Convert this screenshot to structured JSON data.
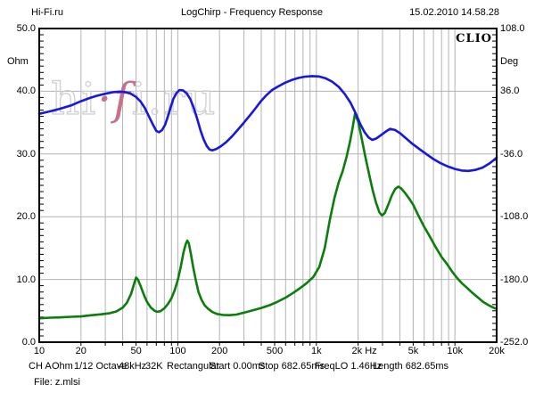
{
  "header": {
    "app_source": "Hi-Fi.ru",
    "title": "LogChirp - Frequency Response",
    "datetime": "15.02.2010 14.58.28"
  },
  "branding": {
    "clio_label": "CLIO",
    "watermark": {
      "pre": "hi",
      "accent": "·f",
      "post": "i.ru"
    }
  },
  "status_bar": {
    "items": [
      "CH A",
      "Ohm",
      "1/12 Octave",
      "48kHz",
      "32K",
      "Rectangular",
      "Start 0.00ms",
      "Stop 682.65ms",
      "FreqLO 1.46Hz",
      "Length 682.65ms"
    ],
    "file_label": "File: z.mlsi"
  },
  "colors": {
    "impedance_curve": "#0a7e0a",
    "phase_curve": "#1717dd",
    "gridline": "#b3b3b3",
    "border": "#000000",
    "watermark_outline": "#cfcfcf",
    "watermark_accent": "#c4738a"
  },
  "chart_data": {
    "type": "line",
    "title": "LogChirp - Frequency Response",
    "grid": true,
    "x_axis": {
      "scale": "log",
      "min": 10,
      "max": 20000,
      "unit": "Hz",
      "tick_values": [
        10,
        20,
        50,
        100,
        200,
        500,
        1000,
        2000,
        5000,
        10000,
        20000
      ],
      "tick_labels": [
        "10",
        "20",
        "50",
        "100",
        "200",
        "500",
        "1k",
        "2k Hz",
        "5k",
        "10k",
        "20k"
      ]
    },
    "y_left": {
      "label": "Ohm",
      "min": 0,
      "max": 50,
      "tick_values": [
        0,
        10,
        20,
        30,
        40,
        50
      ],
      "tick_labels": [
        "0.0",
        "10.0",
        "20.0",
        "30.0",
        "40.0",
        "50.0"
      ]
    },
    "y_right": {
      "label": "Deg",
      "min": -252,
      "max": 108,
      "tick_values": [
        -252,
        -180,
        -108,
        -36,
        36,
        108
      ],
      "tick_labels": [
        "-252.0",
        "-180.0",
        "-108.0",
        "-36.0",
        "36.0",
        "108.0"
      ]
    },
    "series": [
      {
        "name": "impedance-magnitude",
        "axis": "left",
        "unit": "Ohm",
        "color": "#0a7e0a",
        "points": [
          [
            10,
            3.8
          ],
          [
            12,
            3.9
          ],
          [
            14,
            3.95
          ],
          [
            17,
            4.05
          ],
          [
            20,
            4.1
          ],
          [
            24,
            4.3
          ],
          [
            28,
            4.45
          ],
          [
            32,
            4.6
          ],
          [
            36,
            4.9
          ],
          [
            40,
            5.5
          ],
          [
            43,
            6.3
          ],
          [
            46,
            7.7
          ],
          [
            48.5,
            9.4
          ],
          [
            50,
            10.3
          ],
          [
            51.5,
            10.0
          ],
          [
            54,
            8.9
          ],
          [
            57,
            7.5
          ],
          [
            60,
            6.4
          ],
          [
            64,
            5.5
          ],
          [
            68,
            5.0
          ],
          [
            71,
            4.85
          ],
          [
            75,
            4.95
          ],
          [
            80,
            5.4
          ],
          [
            85,
            6.1
          ],
          [
            90,
            7.0
          ],
          [
            95,
            8.3
          ],
          [
            100,
            9.9
          ],
          [
            105,
            12.0
          ],
          [
            110,
            14.3
          ],
          [
            114,
            15.6
          ],
          [
            117,
            16.2
          ],
          [
            120,
            15.8
          ],
          [
            124,
            14.2
          ],
          [
            129,
            12.0
          ],
          [
            135,
            9.8
          ],
          [
            141,
            8.0
          ],
          [
            148,
            6.8
          ],
          [
            156,
            5.9
          ],
          [
            166,
            5.3
          ],
          [
            178,
            4.8
          ],
          [
            192,
            4.5
          ],
          [
            210,
            4.35
          ],
          [
            235,
            4.3
          ],
          [
            265,
            4.4
          ],
          [
            300,
            4.7
          ],
          [
            345,
            5.05
          ],
          [
            400,
            5.45
          ],
          [
            460,
            5.9
          ],
          [
            520,
            6.4
          ],
          [
            600,
            7.1
          ],
          [
            680,
            7.85
          ],
          [
            760,
            8.6
          ],
          [
            850,
            9.4
          ],
          [
            950,
            10.4
          ],
          [
            1050,
            12.0
          ],
          [
            1150,
            15.0
          ],
          [
            1250,
            19.5
          ],
          [
            1350,
            23.0
          ],
          [
            1450,
            25.5
          ],
          [
            1550,
            27.3
          ],
          [
            1650,
            29.5
          ],
          [
            1750,
            32.0
          ],
          [
            1830,
            34.3
          ],
          [
            1900,
            36.4
          ],
          [
            2000,
            35.2
          ],
          [
            2100,
            33.0
          ],
          [
            2250,
            29.7
          ],
          [
            2400,
            26.8
          ],
          [
            2550,
            24.2
          ],
          [
            2700,
            22.2
          ],
          [
            2850,
            20.7
          ],
          [
            2980,
            20.2
          ],
          [
            3120,
            20.6
          ],
          [
            3300,
            21.9
          ],
          [
            3500,
            23.4
          ],
          [
            3700,
            24.4
          ],
          [
            3900,
            24.8
          ],
          [
            4100,
            24.5
          ],
          [
            4400,
            23.7
          ],
          [
            4700,
            22.8
          ],
          [
            5000,
            21.9
          ],
          [
            5500,
            20.0
          ],
          [
            6000,
            18.4
          ],
          [
            6600,
            16.8
          ],
          [
            7200,
            15.3
          ],
          [
            8000,
            13.6
          ],
          [
            8800,
            12.4
          ],
          [
            9500,
            11.3
          ],
          [
            10300,
            10.3
          ],
          [
            11200,
            9.4
          ],
          [
            12200,
            8.7
          ],
          [
            13300,
            7.9
          ],
          [
            14500,
            7.2
          ],
          [
            16000,
            6.4
          ],
          [
            17500,
            5.9
          ],
          [
            19000,
            5.5
          ],
          [
            20000,
            5.3
          ]
        ]
      },
      {
        "name": "phase",
        "axis": "right",
        "unit": "Deg",
        "color": "#1717dd",
        "points": [
          [
            10,
            10.1
          ],
          [
            12,
            13.0
          ],
          [
            14,
            15.6
          ],
          [
            17,
            19.7
          ],
          [
            20,
            24.5
          ],
          [
            23,
            28.1
          ],
          [
            26,
            30.8
          ],
          [
            30,
            33.1
          ],
          [
            34,
            34.9
          ],
          [
            38,
            35.6
          ],
          [
            42,
            34.9
          ],
          [
            46,
            33.0
          ],
          [
            50,
            29.5
          ],
          [
            54,
            24.0
          ],
          [
            58,
            16.5
          ],
          [
            62,
            7.0
          ],
          [
            66,
            -2.0
          ],
          [
            70,
            -9.5
          ],
          [
            73,
            -11.0
          ],
          [
            77,
            -8.5
          ],
          [
            81,
            -2.5
          ],
          [
            85,
            7.5
          ],
          [
            89,
            18.0
          ],
          [
            93,
            27.5
          ],
          [
            98,
            34.0
          ],
          [
            103,
            37.4
          ],
          [
            109,
            37.0
          ],
          [
            116,
            33.5
          ],
          [
            123,
            27.0
          ],
          [
            130,
            17.5
          ],
          [
            138,
            4.5
          ],
          [
            146,
            -9.0
          ],
          [
            154,
            -19.5
          ],
          [
            162,
            -27.0
          ],
          [
            170,
            -31.0
          ],
          [
            178,
            -31.8
          ],
          [
            190,
            -30.2
          ],
          [
            205,
            -27.0
          ],
          [
            225,
            -22.0
          ],
          [
            247,
            -15.5
          ],
          [
            272,
            -8.0
          ],
          [
            300,
            0.0
          ],
          [
            330,
            8.0
          ],
          [
            362,
            16.0
          ],
          [
            398,
            24.5
          ],
          [
            436,
            31.5
          ],
          [
            480,
            37.5
          ],
          [
            530,
            41.5
          ],
          [
            590,
            45.5
          ],
          [
            660,
            48.8
          ],
          [
            740,
            51.2
          ],
          [
            830,
            52.8
          ],
          [
            930,
            53.4
          ],
          [
            1040,
            53.0
          ],
          [
            1160,
            51.0
          ],
          [
            1300,
            47.0
          ],
          [
            1450,
            41.0
          ],
          [
            1600,
            33.0
          ],
          [
            1760,
            23.0
          ],
          [
            1930,
            10.0
          ],
          [
            2080,
            -2.0
          ],
          [
            2230,
            -11.0
          ],
          [
            2380,
            -17.0
          ],
          [
            2530,
            -19.8
          ],
          [
            2700,
            -18.3
          ],
          [
            2900,
            -14.8
          ],
          [
            3150,
            -10.5
          ],
          [
            3400,
            -7.2
          ],
          [
            3700,
            -8.5
          ],
          [
            4000,
            -12.0
          ],
          [
            4400,
            -17.5
          ],
          [
            4900,
            -24.0
          ],
          [
            5500,
            -30.0
          ],
          [
            6200,
            -36.0
          ],
          [
            7000,
            -41.8
          ],
          [
            7900,
            -46.6
          ],
          [
            8900,
            -50.4
          ],
          [
            10000,
            -53.2
          ],
          [
            11200,
            -55.0
          ],
          [
            12500,
            -55.4
          ],
          [
            14000,
            -54.3
          ],
          [
            15800,
            -51.6
          ],
          [
            17600,
            -47.3
          ],
          [
            19000,
            -43.3
          ],
          [
            20000,
            -40.2
          ]
        ]
      }
    ]
  }
}
